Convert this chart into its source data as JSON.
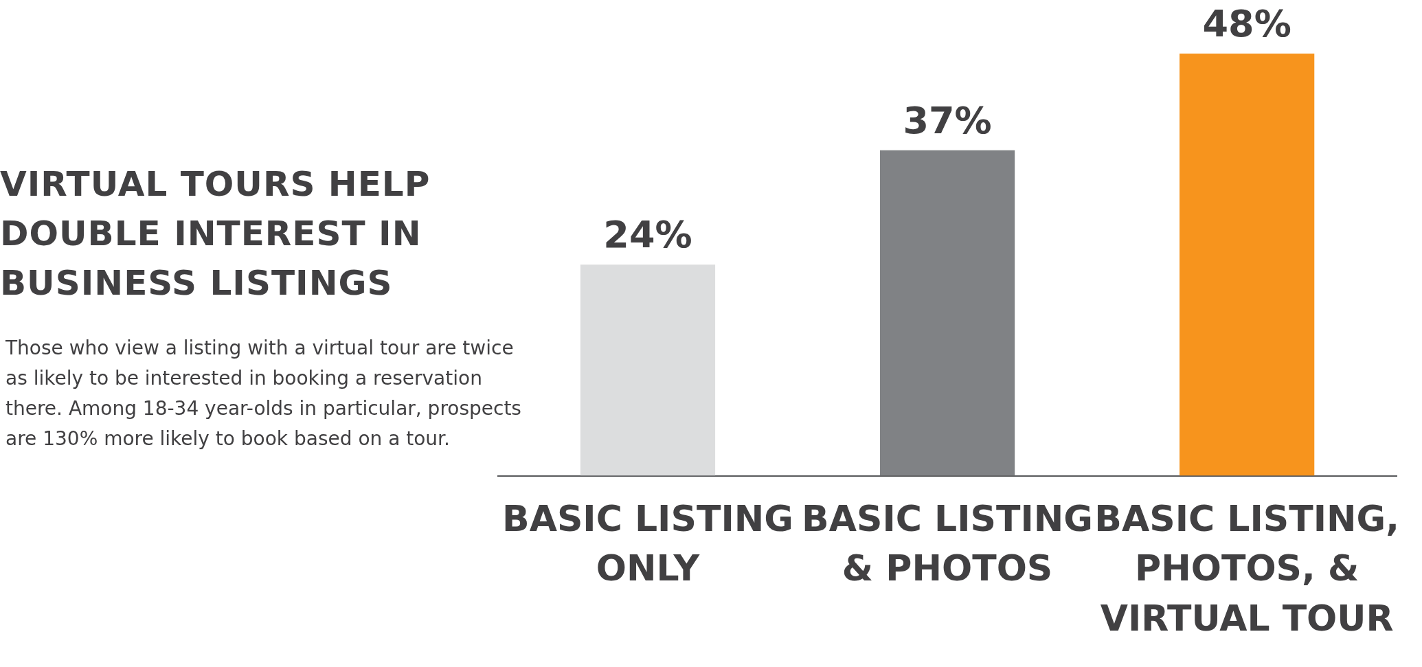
{
  "chart_data": {
    "type": "bar",
    "title": "VIRTUAL TOURS HELP DOUBLE INTEREST IN BUSINESS LISTINGS",
    "annotations": [
      "Those who view a listing with a virtual tour are twice as likely to be interested in booking a reservation there.  Among 18-34 year-olds in particular, prospects are 130% more likely to book based on a tour."
    ],
    "categories": [
      "BASIC LISTING ONLY",
      "BASIC LISTING & PHOTOS",
      "BASIC LISTING, PHOTOS, & VIRTUAL TOUR"
    ],
    "values": [
      24,
      37,
      48
    ],
    "value_labels": [
      "24%",
      "37%",
      "48%"
    ],
    "colors": [
      "#dcddde",
      "#808285",
      "#f7941d"
    ],
    "grid": false,
    "legend": false
  }
}
